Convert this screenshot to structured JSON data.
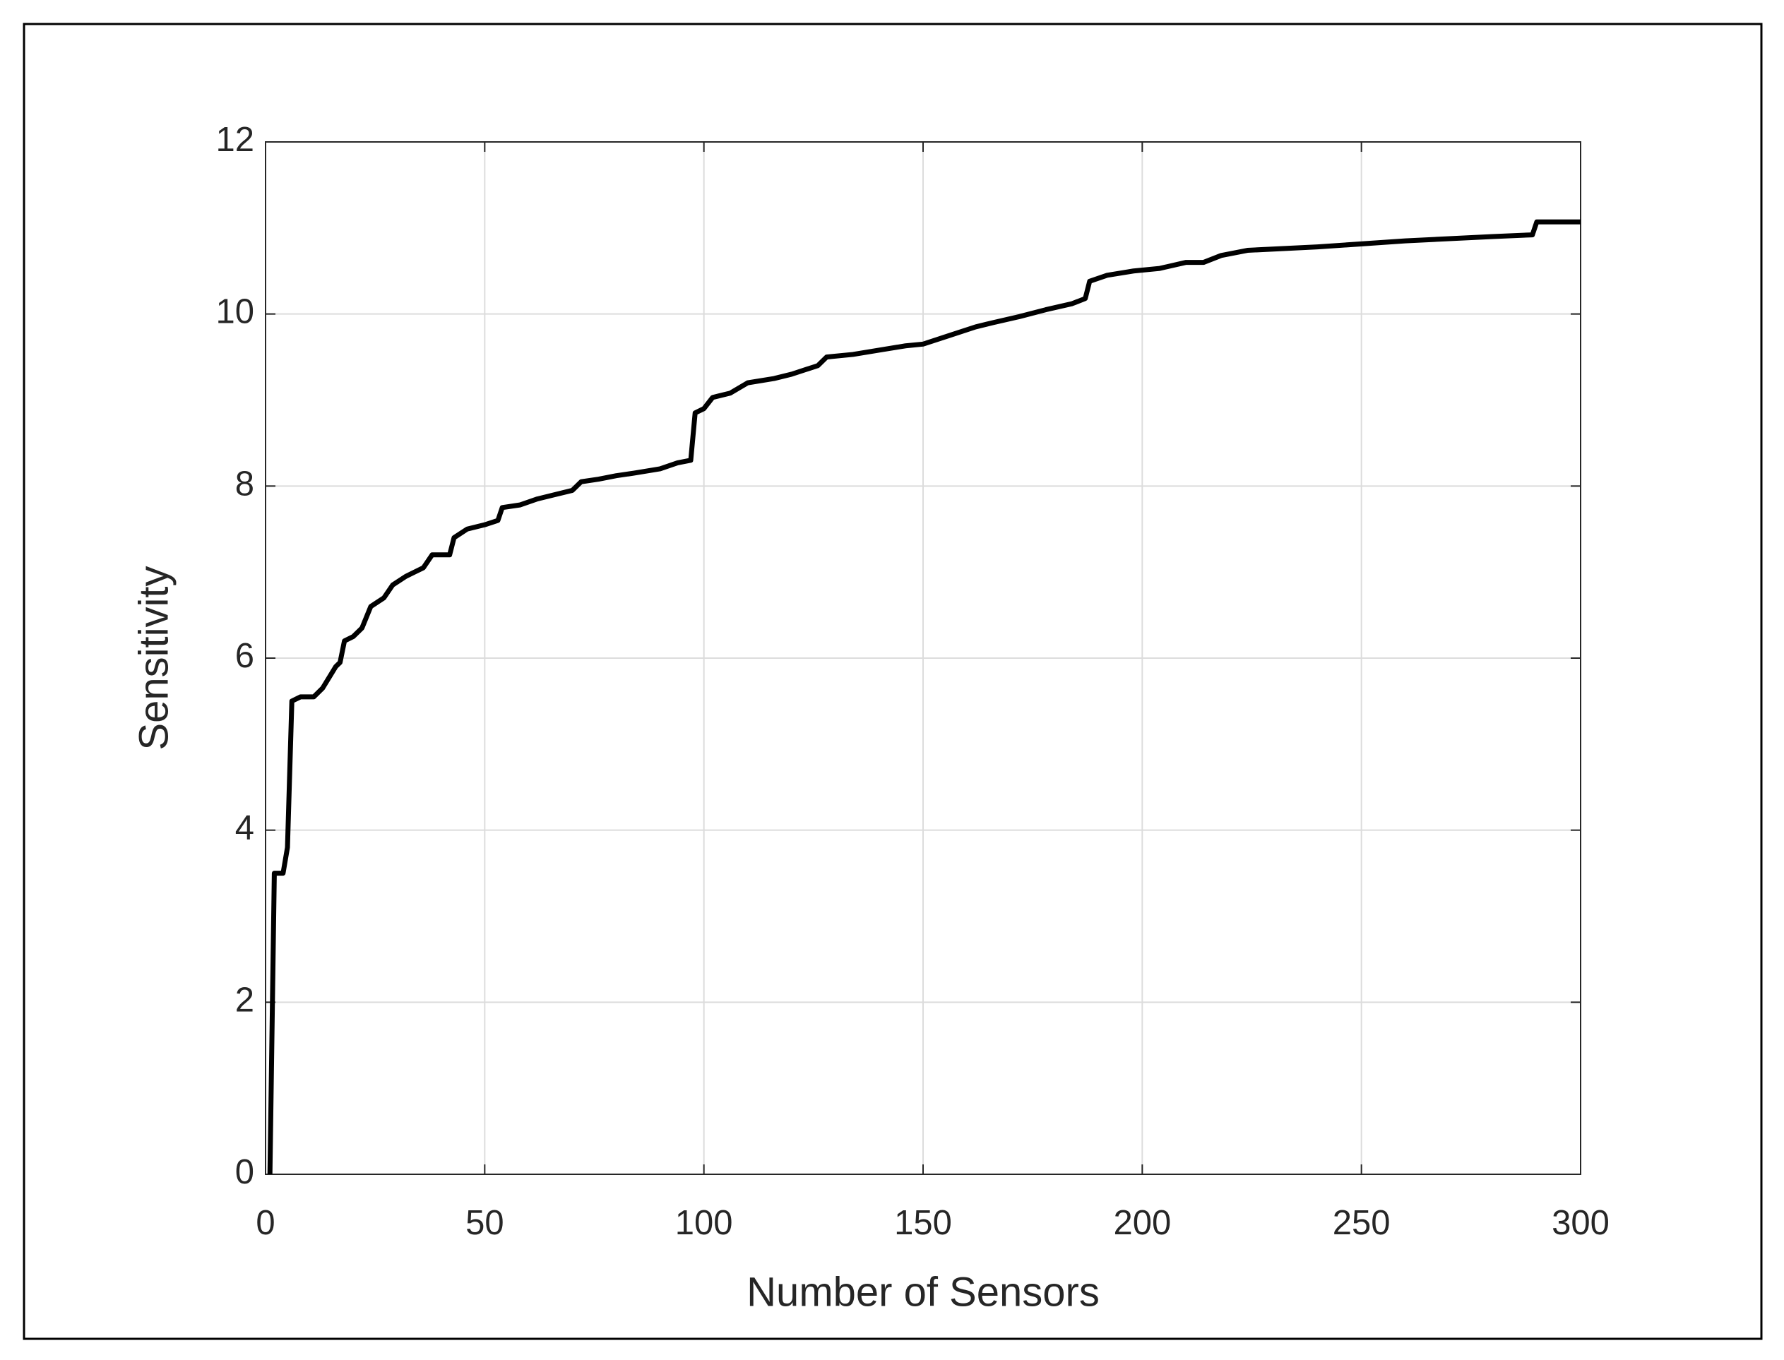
{
  "chart_data": {
    "type": "line",
    "xlabel": "Number of Sensors",
    "ylabel": "Sensitivity",
    "x": [
      1,
      2,
      4,
      5,
      6,
      8,
      11,
      13,
      16,
      17,
      18,
      20,
      22,
      24,
      27,
      29,
      32,
      34,
      36,
      38,
      42,
      43,
      46,
      50,
      53,
      54,
      58,
      62,
      66,
      70,
      72,
      76,
      80,
      84,
      90,
      94,
      97,
      98,
      100,
      102,
      106,
      110,
      116,
      120,
      126,
      128,
      134,
      140,
      146,
      150,
      156,
      162,
      166,
      172,
      178,
      184,
      187,
      188,
      192,
      198,
      204,
      210,
      214,
      218,
      224,
      240,
      260,
      280,
      289,
      290,
      300
    ],
    "values": [
      0,
      3.5,
      3.5,
      3.8,
      5.5,
      5.55,
      5.55,
      5.65,
      5.9,
      5.95,
      6.2,
      6.25,
      6.35,
      6.6,
      6.7,
      6.85,
      6.95,
      7.0,
      7.05,
      7.2,
      7.2,
      7.4,
      7.5,
      7.55,
      7.6,
      7.75,
      7.78,
      7.85,
      7.9,
      7.95,
      8.05,
      8.08,
      8.12,
      8.15,
      8.2,
      8.27,
      8.3,
      8.85,
      8.9,
      9.03,
      9.08,
      9.2,
      9.25,
      9.3,
      9.4,
      9.5,
      9.53,
      9.58,
      9.63,
      9.65,
      9.75,
      9.85,
      9.9,
      9.97,
      10.05,
      10.12,
      10.18,
      10.38,
      10.45,
      10.5,
      10.53,
      10.6,
      10.6,
      10.68,
      10.74,
      10.78,
      10.85,
      10.9,
      10.92,
      11.07,
      11.07
    ],
    "color": "#000000",
    "xlim": [
      0,
      300
    ],
    "ylim": [
      0,
      12
    ],
    "xticks": [
      0,
      50,
      100,
      150,
      200,
      250,
      300
    ],
    "yticks": [
      0,
      2,
      4,
      6,
      8,
      10,
      12
    ],
    "grid": true
  }
}
